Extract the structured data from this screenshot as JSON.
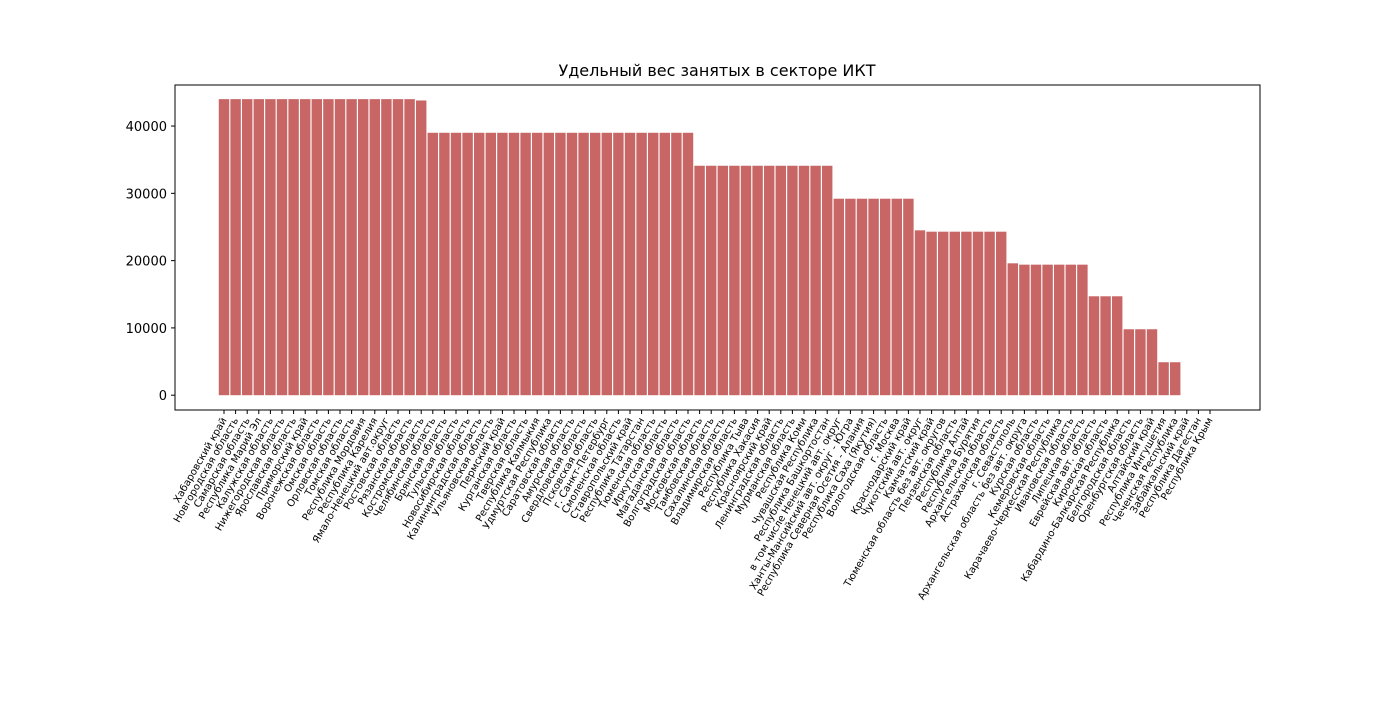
{
  "chart_data": {
    "type": "bar",
    "title": "Удельный вес занятых в секторе ИКТ",
    "categories": [
      "Хабаровский край",
      "Новгородская область",
      "Самарская область",
      "Республика Марий Эл",
      "Калужская область",
      "Нижегородская область",
      "Ярославская область",
      "Приморский край",
      "Воронежская область",
      "Омская область",
      "Орловская область",
      "Томская область",
      "Республика Мордовия",
      "Республика Карелия",
      "Ямало-Ненецкий авт.округ",
      "Ростовская область",
      "Рязанская область",
      "Костромская область",
      "Челябинская область",
      "Брянская область",
      "Тульская область",
      "Новосибирская область",
      "Калининградская область",
      "Ульяновская область",
      "Пермский край",
      "Курганская область",
      "Тверская область",
      "Республика Калмыкия",
      "Удмуртская Республика",
      "Саратовская область",
      "Амурская область",
      "Свердловская область",
      "Псковская область",
      "г. Санкт-Петербург",
      "Смоленская область",
      "Ставропольский край",
      "Республика Татарстан",
      "Тюменская область",
      "Иркутская область",
      "Магаданская область",
      "Волгоградская область",
      "Московская область",
      "Тамбовская область",
      "Сахалинская область",
      "Владимирская область",
      "Республика Тыва",
      "Республика Хакасия",
      "Красноярский край",
      "Ленинградская область",
      "Мурманская область",
      "Республика Коми",
      "Чувашская Республика",
      "Республика Башкортостан",
      "в том числе Ненецкий авт. округ",
      "Ханты-Мансийский авт. округ - Югра",
      "Республика Северная Осетия - Алания",
      "Республика Саха (Якутия)",
      "Вологодская область",
      "г. Москва",
      "Краснодарский край",
      "Чукотский авт. округ",
      "Камчатский край",
      "Тюменская область без авт. округов",
      "Пензенская область",
      "Республика Алтай",
      "Республика Бурятия",
      "Архангельская область",
      "Астраханская область",
      "г. Севастополь",
      "Архангельская область без авт. округа",
      "Курская область",
      "Кемеровская область",
      "Карачаево-Черкесская Республика",
      "Ивановская область",
      "Липецкая область",
      "Еврейская авт. область",
      "Кировская область",
      "Кабардино-Балкарская Республика",
      "Белгородская область",
      "Оренбургская область",
      "Алтайский край",
      "Республика Ингушетия",
      "Чеченская Республика",
      "Забайкальский край",
      "Республика Дагестан",
      "Республика Крым"
    ],
    "values": [
      44000,
      44000,
      44000,
      44000,
      44000,
      44000,
      44000,
      44000,
      44000,
      44000,
      44000,
      44000,
      44000,
      44000,
      44000,
      44000,
      44000,
      43800,
      39000,
      39000,
      39000,
      39000,
      39000,
      39000,
      39000,
      39000,
      39000,
      39000,
      39000,
      39000,
      39000,
      39000,
      39000,
      39000,
      39000,
      39000,
      39000,
      39000,
      39000,
      39000,
      39000,
      34100,
      34100,
      34100,
      34100,
      34100,
      34100,
      34100,
      34100,
      34100,
      34100,
      34100,
      34100,
      29200,
      29200,
      29200,
      29200,
      29200,
      29200,
      29200,
      24500,
      24300,
      24300,
      24300,
      24300,
      24300,
      24300,
      24300,
      19600,
      19400,
      19400,
      19400,
      19400,
      19400,
      19400,
      14700,
      14700,
      14700,
      9800,
      9800,
      9800,
      4900,
      4900,
      0,
      0,
      0
    ],
    "color": "#c86565",
    "ylim": [
      -2200,
      46100
    ],
    "yticks": [
      0,
      10000,
      20000,
      30000,
      40000
    ]
  }
}
